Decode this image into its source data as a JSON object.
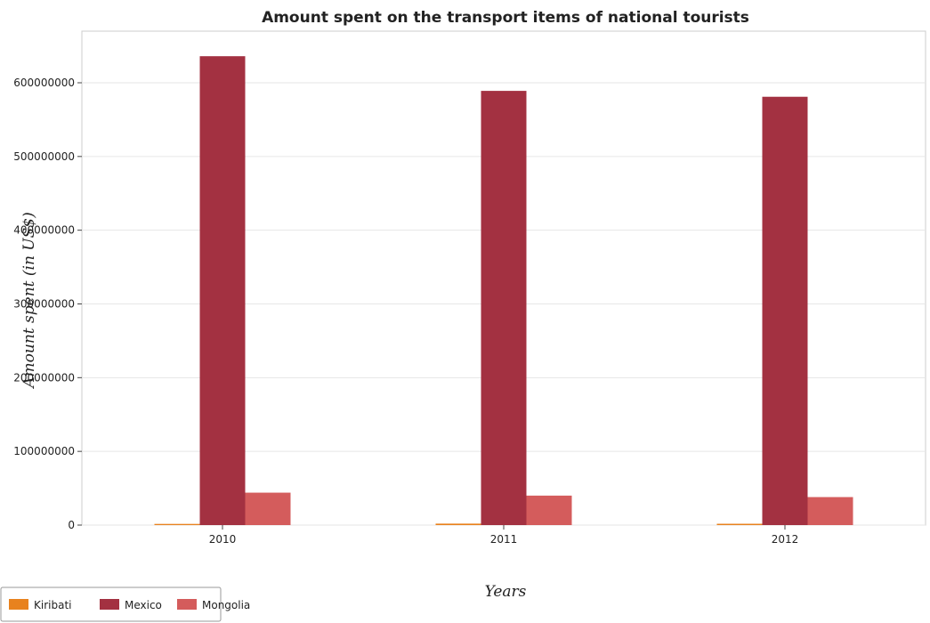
{
  "chart_data": {
    "type": "bar",
    "title": "Amount spent on the transport items of national tourists",
    "xlabel": "Years",
    "ylabel": "Amount spent (in US$)",
    "categories": [
      "2010",
      "2011",
      "2012"
    ],
    "series": [
      {
        "name": "Kiribati",
        "color": "#e8821e",
        "values": [
          1600000,
          2000000,
          1800000
        ]
      },
      {
        "name": "Mexico",
        "color": "#a33141",
        "values": [
          636000000,
          589000000,
          581000000
        ]
      },
      {
        "name": "Mongolia",
        "color": "#d45c5c",
        "values": [
          44000000,
          40000000,
          38000000
        ]
      }
    ],
    "yticks": [
      0,
      100000000,
      200000000,
      300000000,
      400000000,
      500000000,
      600000000
    ],
    "ytick_labels": [
      "0",
      "100000000",
      "200000000",
      "300000000",
      "400000000",
      "500000000",
      "600000000"
    ],
    "ylim": [
      0,
      670000000
    ],
    "grid": true,
    "legend_position": "bottom-left"
  }
}
